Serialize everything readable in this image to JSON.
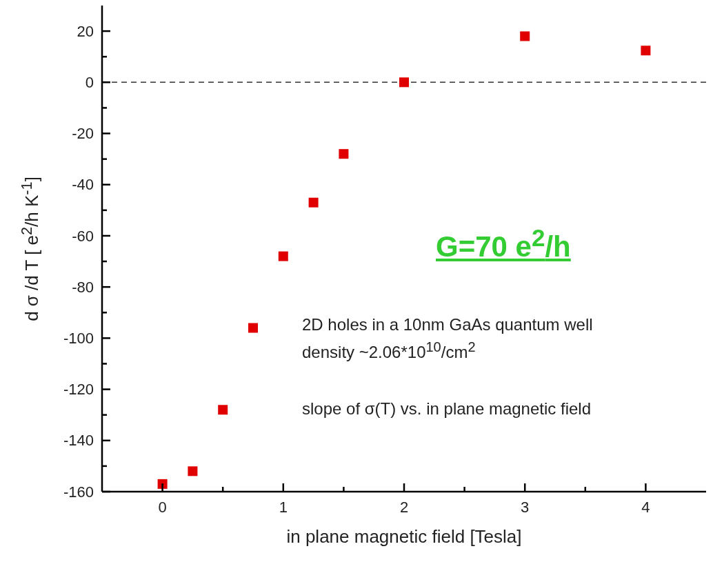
{
  "chart_data": {
    "type": "scatter",
    "xlabel": "in plane magnetic field [Tesla]",
    "ylabel": "d σ /d T [ e$^{2}$/h K$^{-1}$]",
    "x": [
      0,
      0.25,
      0.5,
      0.75,
      1,
      1.25,
      1.5,
      2,
      3,
      4
    ],
    "series": [
      {
        "color": "#e00000",
        "values": [
          -157,
          -152,
          -128,
          -96,
          -68,
          -47,
          -28,
          0,
          18,
          12.4
        ]
      }
    ],
    "xlim": [
      -0.5,
      4.5
    ],
    "xticks": [
      0,
      {
        "value": 0.5,
        "label": null
      },
      1,
      {
        "value": 1.5,
        "label": null
      },
      2,
      {
        "value": 2.5,
        "label": null
      },
      3,
      {
        "value": 3.5,
        "label": null
      },
      4
    ],
    "ylim": [
      -160,
      30
    ],
    "yticks": [
      -160,
      {
        "value": -150,
        "label": null
      },
      -140,
      {
        "value": -130,
        "label": null
      },
      -120,
      {
        "value": -110,
        "label": null
      },
      -100,
      {
        "value": -90,
        "label": null
      },
      -80,
      {
        "value": -70,
        "label": null
      },
      -60,
      {
        "value": -50,
        "label": null
      },
      -40,
      {
        "value": -30,
        "label": null
      },
      -20,
      {
        "value": -10,
        "label": null
      },
      0,
      {
        "value": 10,
        "label": null
      },
      20
    ],
    "ref_lines": [
      {
        "axis": "y",
        "value": 0,
        "label": null,
        "color": "#333333",
        "line_style": "dashed"
      }
    ],
    "marker": "square",
    "grid": false,
    "legend": false,
    "annotations": [
      "G=70 e$^{2}$/h",
      "2D holes in a 10nm GaAs quantum well",
      "density ~2.06*10$^{10}$/cm$^{2}$",
      "slope of σ(T) vs. in plane magnetic field"
    ]
  }
}
